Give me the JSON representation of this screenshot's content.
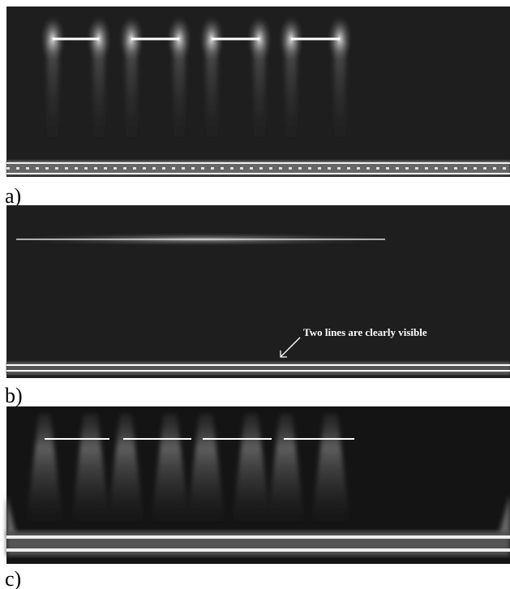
{
  "panels": [
    {
      "label": "a)"
    },
    {
      "label": "b)",
      "annotation": "Two lines are clearly visible"
    },
    {
      "label": "c)"
    }
  ]
}
